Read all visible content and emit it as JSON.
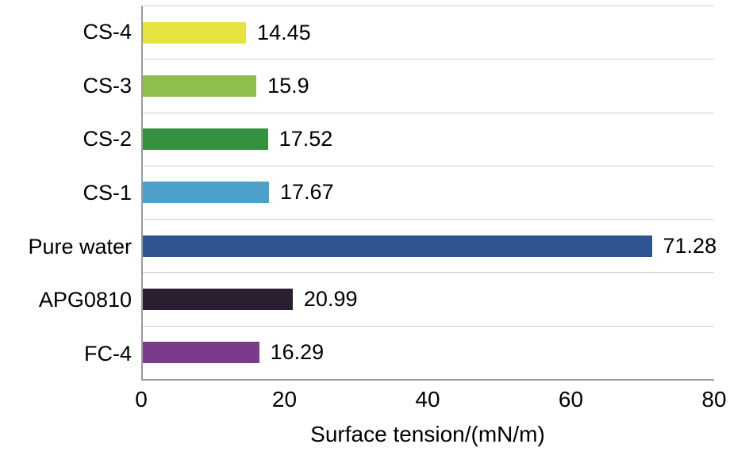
{
  "chart_data": {
    "type": "bar",
    "orientation": "horizontal",
    "title": "",
    "xlabel": "Surface tension/(mN/m)",
    "ylabel": "",
    "xlim": [
      0,
      80
    ],
    "x_ticks": [
      "0",
      "20",
      "40",
      "60",
      "80"
    ],
    "grid": "horizontal category separator lines",
    "legend": "none",
    "categories": [
      "CS-4",
      "CS-3",
      "CS-2",
      "CS-1",
      "Pure water",
      "APG0810",
      "FC-4"
    ],
    "values": [
      14.45,
      15.9,
      17.52,
      17.67,
      71.28,
      20.99,
      16.29
    ],
    "value_labels": [
      "14.45",
      "15.9",
      "17.52",
      "17.67",
      "71.28",
      "20.99",
      "16.29"
    ],
    "bar_colors": [
      "#e6e23f",
      "#8ebe4b",
      "#35913f",
      "#4ba1cb",
      "#2f5492",
      "#2a1e32",
      "#7b3b8c"
    ],
    "gridline_color": "#cfcfcf",
    "axis_line_color": "#9a9a9a",
    "text_color": "#000000",
    "background_color": "#ffffff"
  }
}
